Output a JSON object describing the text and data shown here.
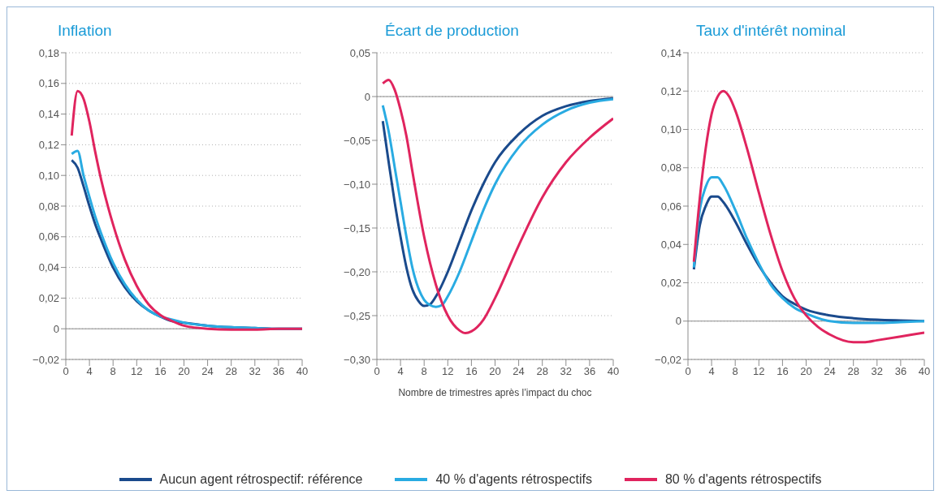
{
  "chart_data": [
    {
      "type": "line",
      "title": "Inflation",
      "legend": "bottom",
      "grid": "y",
      "line_style": "solid",
      "marker": "none",
      "xlim": [
        0,
        40
      ],
      "xticks": [
        0,
        4,
        8,
        12,
        16,
        20,
        24,
        28,
        32,
        36,
        40
      ],
      "ylim": [
        -0.02,
        0.18
      ],
      "yticks": [
        {
          "value": -0.02,
          "label": "−0,02"
        },
        {
          "value": 0,
          "label": "0"
        },
        {
          "value": 0.02,
          "label": "0,02"
        },
        {
          "value": 0.04,
          "label": "0,04"
        },
        {
          "value": 0.06,
          "label": "0,06"
        },
        {
          "value": 0.08,
          "label": "0,08"
        },
        {
          "value": 0.1,
          "label": "0,10"
        },
        {
          "value": 0.12,
          "label": "0,12"
        },
        {
          "value": 0.14,
          "label": "0,14"
        },
        {
          "value": 0.16,
          "label": "0,16"
        },
        {
          "value": 0.18,
          "label": "0,18"
        }
      ],
      "ref_lines": [
        {
          "axis": "y",
          "value": 0,
          "color": "#8c8c8c"
        }
      ],
      "series": [
        {
          "name": "Aucun agent rétrospectif: référence",
          "color": "#1a4a8c",
          "x": [
            1,
            2,
            3,
            4,
            5,
            6,
            8,
            10,
            12,
            14,
            16,
            18,
            20,
            24,
            28,
            32,
            36,
            40
          ],
          "values": [
            0.11,
            0.105,
            0.093,
            0.08,
            0.068,
            0.058,
            0.04,
            0.027,
            0.018,
            0.012,
            0.008,
            0.005,
            0.004,
            0.002,
            0.001,
            0.0005,
            0,
            0
          ]
        },
        {
          "name": "40 % d'agents rétrospectifs",
          "color": "#29abe2",
          "x": [
            1,
            2,
            3,
            4,
            5,
            6,
            8,
            10,
            12,
            14,
            16,
            18,
            20,
            24,
            28,
            32,
            36,
            40
          ],
          "values": [
            0.114,
            0.116,
            0.1,
            0.086,
            0.073,
            0.062,
            0.043,
            0.029,
            0.019,
            0.012,
            0.008,
            0.006,
            0.004,
            0.002,
            0.001,
            0.0005,
            0,
            0
          ]
        },
        {
          "name": "80 % d'agents rétrospectifs",
          "color": "#e0245e",
          "x": [
            1,
            2,
            3,
            4,
            5,
            6,
            8,
            10,
            12,
            14,
            16,
            18,
            20,
            24,
            28,
            32,
            36,
            40
          ],
          "values": [
            0.126,
            0.155,
            0.15,
            0.135,
            0.115,
            0.097,
            0.068,
            0.045,
            0.028,
            0.016,
            0.009,
            0.005,
            0.002,
            0,
            -0.0005,
            -0.0005,
            0,
            0
          ]
        }
      ]
    },
    {
      "type": "line",
      "title": "Écart de production",
      "xlabel": "Nombre de trimestres après l’impact du choc",
      "grid": "y",
      "line_style": "solid",
      "marker": "none",
      "xlim": [
        0,
        40
      ],
      "xticks": [
        0,
        4,
        8,
        12,
        16,
        20,
        24,
        28,
        32,
        36,
        40
      ],
      "ylim": [
        -0.3,
        0.05
      ],
      "yticks": [
        {
          "value": -0.3,
          "label": "−0,30"
        },
        {
          "value": -0.25,
          "label": "−0,25"
        },
        {
          "value": -0.2,
          "label": "−0,20"
        },
        {
          "value": -0.15,
          "label": "−0,15"
        },
        {
          "value": -0.1,
          "label": "−0,10"
        },
        {
          "value": -0.05,
          "label": "−0,05"
        },
        {
          "value": 0,
          "label": "0"
        },
        {
          "value": 0.05,
          "label": "0,05"
        }
      ],
      "ref_lines": [
        {
          "axis": "y",
          "value": 0,
          "color": "#8c8c8c"
        }
      ],
      "series": [
        {
          "color": "#1a4a8c",
          "x": [
            1,
            2,
            3,
            4,
            5,
            6,
            7,
            8,
            9,
            10,
            12,
            14,
            16,
            18,
            20,
            24,
            28,
            32,
            36,
            40
          ],
          "values": [
            -0.028,
            -0.075,
            -0.12,
            -0.16,
            -0.195,
            -0.22,
            -0.233,
            -0.239,
            -0.237,
            -0.228,
            -0.2,
            -0.165,
            -0.13,
            -0.1,
            -0.075,
            -0.043,
            -0.022,
            -0.011,
            -0.005,
            -0.002
          ]
        },
        {
          "color": "#29abe2",
          "x": [
            1,
            2,
            3,
            4,
            5,
            6,
            8,
            9,
            10,
            11,
            12,
            14,
            16,
            18,
            20,
            24,
            28,
            32,
            36,
            40
          ],
          "values": [
            -0.01,
            -0.04,
            -0.08,
            -0.12,
            -0.16,
            -0.195,
            -0.232,
            -0.238,
            -0.24,
            -0.238,
            -0.228,
            -0.2,
            -0.165,
            -0.13,
            -0.1,
            -0.058,
            -0.032,
            -0.016,
            -0.007,
            -0.003
          ]
        },
        {
          "color": "#e0245e",
          "x": [
            1,
            2,
            3,
            4,
            5,
            6,
            8,
            10,
            12,
            14,
            15,
            16,
            18,
            20,
            24,
            28,
            32,
            36,
            40
          ],
          "values": [
            0.015,
            0.019,
            0.008,
            -0.015,
            -0.045,
            -0.085,
            -0.16,
            -0.215,
            -0.25,
            -0.267,
            -0.27,
            -0.268,
            -0.255,
            -0.23,
            -0.17,
            -0.115,
            -0.075,
            -0.047,
            -0.025
          ]
        }
      ]
    },
    {
      "type": "line",
      "title": "Taux d'intérêt nominal",
      "grid": "y",
      "line_style": "solid",
      "marker": "none",
      "xlim": [
        0,
        40
      ],
      "xticks": [
        0,
        4,
        8,
        12,
        16,
        20,
        24,
        28,
        32,
        36,
        40
      ],
      "ylim": [
        -0.02,
        0.14
      ],
      "yticks": [
        {
          "value": -0.02,
          "label": "−0,02"
        },
        {
          "value": 0,
          "label": "0"
        },
        {
          "value": 0.02,
          "label": "0,02"
        },
        {
          "value": 0.04,
          "label": "0,04"
        },
        {
          "value": 0.06,
          "label": "0,06"
        },
        {
          "value": 0.08,
          "label": "0,08"
        },
        {
          "value": 0.1,
          "label": "0,10"
        },
        {
          "value": 0.12,
          "label": "0,12"
        },
        {
          "value": 0.14,
          "label": "0,14"
        }
      ],
      "ref_lines": [
        {
          "axis": "y",
          "value": 0,
          "color": "#8c8c8c"
        }
      ],
      "series": [
        {
          "color": "#1a4a8c",
          "x": [
            1,
            2,
            3,
            4,
            5,
            6,
            8,
            10,
            12,
            14,
            16,
            18,
            20,
            24,
            28,
            32,
            36,
            40
          ],
          "values": [
            0.027,
            0.05,
            0.06,
            0.065,
            0.065,
            0.062,
            0.052,
            0.04,
            0.029,
            0.02,
            0.013,
            0.009,
            0.006,
            0.003,
            0.0015,
            0.0007,
            0.0003,
            0
          ]
        },
        {
          "color": "#29abe2",
          "x": [
            1,
            2,
            3,
            4,
            5,
            6,
            8,
            10,
            12,
            14,
            16,
            18,
            20,
            24,
            28,
            32,
            36,
            40
          ],
          "values": [
            0.028,
            0.058,
            0.07,
            0.075,
            0.075,
            0.071,
            0.058,
            0.043,
            0.03,
            0.019,
            0.012,
            0.007,
            0.004,
            0,
            -0.001,
            -0.001,
            -0.0005,
            0
          ]
        },
        {
          "color": "#e0245e",
          "x": [
            1,
            2,
            3,
            4,
            5,
            6,
            7,
            8,
            10,
            12,
            14,
            16,
            18,
            20,
            22,
            24,
            28,
            30,
            32,
            36,
            40
          ],
          "values": [
            0.031,
            0.064,
            0.09,
            0.108,
            0.117,
            0.12,
            0.117,
            0.11,
            0.09,
            0.067,
            0.045,
            0.026,
            0.012,
            0.003,
            -0.003,
            -0.007,
            -0.011,
            -0.011,
            -0.01,
            -0.008,
            -0.006
          ]
        }
      ]
    }
  ]
}
